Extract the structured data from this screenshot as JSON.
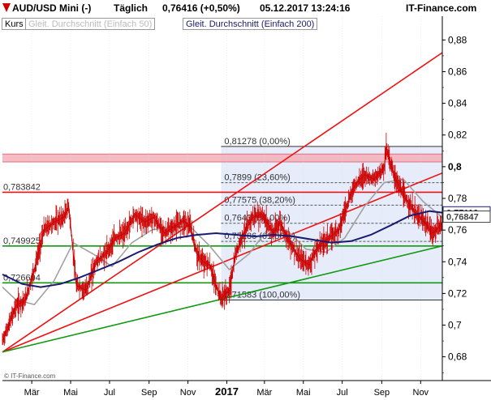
{
  "header": {
    "instrument": "AUD/USD Mini (-)",
    "period": "Täglich",
    "quote": "0,76416 (+0,50%)",
    "timestamp": "05.12.2017 13:24:16",
    "brand": "IT-Finance.com"
  },
  "legend": {
    "kurs": "Kurs",
    "ma50": "Gleit. Durchschnitt (Einfach 50)",
    "ma200": "Gleit. Durchschnitt (Einfach 200)"
  },
  "copyright": "© IT-Finance.com",
  "colors": {
    "price": "#cc0000",
    "ma50": "#a0a0a0",
    "ma200": "#1a1a6e",
    "trend_red": "#ee1111",
    "trend_green": "#119911",
    "resistance_band": "#f4b0b8",
    "fib_shade": "#e6ecfa"
  },
  "chart_data": {
    "type": "line",
    "y_axis": {
      "min": 0.665,
      "max": 0.895,
      "ticks": [
        "0,88",
        "0,86",
        "0,84",
        "0,82",
        "0,8",
        "0,78",
        "0,76",
        "0,74",
        "0,72",
        "0,7",
        "0,68"
      ],
      "tick_values": [
        0.88,
        0.86,
        0.84,
        0.82,
        0.8,
        0.78,
        0.76,
        0.74,
        0.72,
        0.7,
        0.68
      ]
    },
    "x_axis": {
      "labels": [
        "Mär",
        "Mai",
        "Jul",
        "Sep",
        "Nov",
        "2017",
        "Mär",
        "Mai",
        "Jul",
        "Sep",
        "Nov"
      ],
      "label_dates": [
        "2016-03-01",
        "2016-05-01",
        "2016-07-01",
        "2016-09-01",
        "2016-11-01",
        "2017-01-01",
        "2017-03-01",
        "2017-05-01",
        "2017-07-01",
        "2017-09-01",
        "2017-11-01"
      ],
      "start": "2016-01-15",
      "end": "2017-12-05"
    },
    "price_series": {
      "dates": [
        "2016-01-15",
        "2016-01-25",
        "2016-02-05",
        "2016-02-20",
        "2016-03-05",
        "2016-03-20",
        "2016-04-05",
        "2016-04-20",
        "2016-04-28",
        "2016-05-10",
        "2016-05-25",
        "2016-06-10",
        "2016-06-25",
        "2016-07-10",
        "2016-07-25",
        "2016-08-10",
        "2016-08-25",
        "2016-09-08",
        "2016-09-25",
        "2016-10-10",
        "2016-10-25",
        "2016-11-05",
        "2016-11-15",
        "2016-11-25",
        "2016-12-05",
        "2016-12-15",
        "2016-12-23",
        "2017-01-05",
        "2017-01-15",
        "2017-01-25",
        "2017-02-10",
        "2017-02-25",
        "2017-03-15",
        "2017-03-25",
        "2017-04-10",
        "2017-04-25",
        "2017-05-10",
        "2017-05-25",
        "2017-06-10",
        "2017-06-25",
        "2017-07-05",
        "2017-07-20",
        "2017-08-05",
        "2017-08-20",
        "2017-09-05",
        "2017-09-08",
        "2017-09-20",
        "2017-10-05",
        "2017-10-15",
        "2017-10-25",
        "2017-11-05",
        "2017-11-20",
        "2017-12-05"
      ],
      "values": [
        0.69,
        0.7,
        0.712,
        0.716,
        0.735,
        0.76,
        0.765,
        0.768,
        0.775,
        0.725,
        0.722,
        0.74,
        0.745,
        0.755,
        0.758,
        0.77,
        0.765,
        0.768,
        0.758,
        0.762,
        0.766,
        0.762,
        0.745,
        0.74,
        0.738,
        0.725,
        0.717,
        0.722,
        0.745,
        0.756,
        0.768,
        0.77,
        0.758,
        0.765,
        0.752,
        0.742,
        0.738,
        0.75,
        0.755,
        0.76,
        0.772,
        0.788,
        0.795,
        0.792,
        0.8,
        0.812,
        0.795,
        0.782,
        0.776,
        0.77,
        0.766,
        0.758,
        0.764
      ]
    },
    "ma50_series": {
      "dates": [
        "2016-01-15",
        "2016-02-05",
        "2016-03-05",
        "2016-04-05",
        "2016-05-05",
        "2016-06-05",
        "2016-07-05",
        "2016-08-05",
        "2016-09-05",
        "2016-10-05",
        "2016-11-05",
        "2016-12-05",
        "2017-01-05",
        "2017-02-05",
        "2017-03-05",
        "2017-04-05",
        "2017-05-05",
        "2017-06-05",
        "2017-07-05",
        "2017-08-05",
        "2017-09-05",
        "2017-10-05",
        "2017-11-05",
        "2017-12-05"
      ],
      "values": [
        0.724,
        0.716,
        0.713,
        0.728,
        0.752,
        0.745,
        0.737,
        0.752,
        0.76,
        0.762,
        0.762,
        0.75,
        0.735,
        0.745,
        0.76,
        0.76,
        0.748,
        0.746,
        0.755,
        0.775,
        0.79,
        0.792,
        0.778,
        0.768
      ]
    },
    "ma200_series": {
      "dates": [
        "2016-01-15",
        "2016-02-15",
        "2016-03-15",
        "2016-04-15",
        "2016-05-15",
        "2016-06-15",
        "2016-07-15",
        "2016-08-15",
        "2016-09-15",
        "2016-10-15",
        "2016-11-15",
        "2016-12-15",
        "2017-01-15",
        "2017-02-15",
        "2017-03-15",
        "2017-04-15",
        "2017-05-15",
        "2017-06-15",
        "2017-07-15",
        "2017-08-15",
        "2017-09-15",
        "2017-10-15",
        "2017-11-15",
        "2017-12-05"
      ],
      "values": [
        0.732,
        0.726,
        0.724,
        0.726,
        0.73,
        0.735,
        0.74,
        0.746,
        0.751,
        0.755,
        0.757,
        0.758,
        0.757,
        0.756,
        0.757,
        0.756,
        0.754,
        0.752,
        0.753,
        0.757,
        0.763,
        0.769,
        0.772,
        0.771
      ]
    },
    "horizontal_levels": [
      {
        "value": 0.783842,
        "label": "0,783842",
        "color": "#ee1111"
      },
      {
        "value": 0.749925,
        "label": "0,749925",
        "color": "#119911"
      },
      {
        "value": 0.726694,
        "label": "0,726694",
        "color": "#119911"
      }
    ],
    "resistance_band": {
      "from": 0.803,
      "to": 0.808
    },
    "fibonacci": {
      "start_date": "2016-12-23",
      "end_date": "2017-12-05",
      "high": 0.81278,
      "low": 0.71583,
      "levels": [
        {
          "value": 0.81278,
          "label": "0,81278 (0,00%)"
        },
        {
          "value": 0.7899,
          "label": "0,7899 (23,60%)"
        },
        {
          "value": 0.77575,
          "label": "0,77575 (38,20%)"
        },
        {
          "value": 0.7643,
          "label": "0,7643 (50,00%)"
        },
        {
          "value": 0.75286,
          "label": "0,75286 (61,80%)"
        },
        {
          "value": 0.71583,
          "label": "0,71583 (100,00%)"
        }
      ]
    },
    "trendlines": [
      {
        "color": "#ee1111",
        "from": [
          "2016-01-15",
          0.683
        ],
        "to": [
          "2017-12-05",
          0.872
        ]
      },
      {
        "color": "#ee1111",
        "from": [
          "2016-01-15",
          0.683
        ],
        "to": [
          "2017-12-05",
          0.796
        ]
      },
      {
        "color": "#119911",
        "from": [
          "2016-01-15",
          0.683
        ],
        "to": [
          "2017-12-05",
          0.75
        ]
      }
    ],
    "last_values": [
      {
        "value": 0.77116,
        "label": "0,77116",
        "series": "ma200"
      },
      {
        "value": 0.76847,
        "label": "0,76847",
        "series": "ma50"
      }
    ]
  }
}
